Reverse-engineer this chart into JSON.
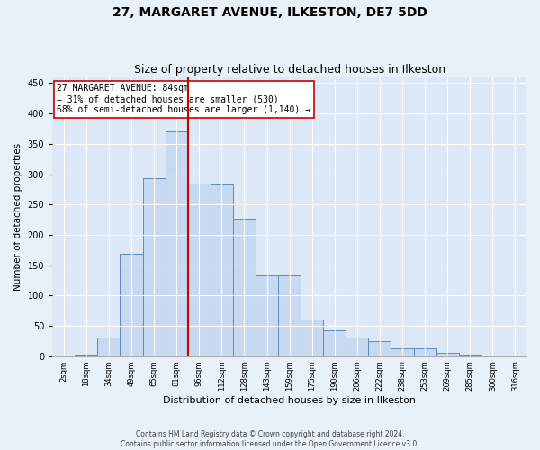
{
  "title": "27, MARGARET AVENUE, ILKESTON, DE7 5DD",
  "subtitle": "Size of property relative to detached houses in Ilkeston",
  "xlabel": "Distribution of detached houses by size in Ilkeston",
  "ylabel": "Number of detached properties",
  "footer_line1": "Contains HM Land Registry data © Crown copyright and database right 2024.",
  "footer_line2": "Contains public sector information licensed under the Open Government Licence v3.0.",
  "categories": [
    "2sqm",
    "18sqm",
    "34sqm",
    "49sqm",
    "65sqm",
    "81sqm",
    "96sqm",
    "112sqm",
    "128sqm",
    "143sqm",
    "159sqm",
    "175sqm",
    "190sqm",
    "206sqm",
    "222sqm",
    "238sqm",
    "253sqm",
    "269sqm",
    "285sqm",
    "300sqm",
    "316sqm"
  ],
  "values": [
    0,
    3,
    30,
    168,
    293,
    370,
    285,
    283,
    226,
    133,
    133,
    60,
    42,
    30,
    25,
    13,
    13,
    5,
    2,
    0,
    0
  ],
  "bar_color": "#c6d9f0",
  "bar_edge_color": "#5a8ac6",
  "property_label": "27 MARGARET AVENUE: 84sqm",
  "annotation_line2": "← 31% of detached houses are smaller (530)",
  "annotation_line3": "68% of semi-detached houses are larger (1,140) →",
  "vline_color": "#cc0000",
  "vline_x": 5.5,
  "annot_box_facecolor": "#ffffff",
  "annot_box_edgecolor": "#cc0000",
  "ylim_max": 460,
  "yticks": [
    0,
    50,
    100,
    150,
    200,
    250,
    300,
    350,
    400,
    450
  ],
  "fig_bg_color": "#e8f0f8",
  "axes_bg_color": "#dce8f5",
  "grid_color": "#ffffff",
  "title_fontsize": 10,
  "subtitle_fontsize": 9,
  "ylabel_fontsize": 7.5,
  "xlabel_fontsize": 8,
  "xtick_fontsize": 6,
  "ytick_fontsize": 7,
  "footer_fontsize": 5.5,
  "annot_fontsize": 7
}
